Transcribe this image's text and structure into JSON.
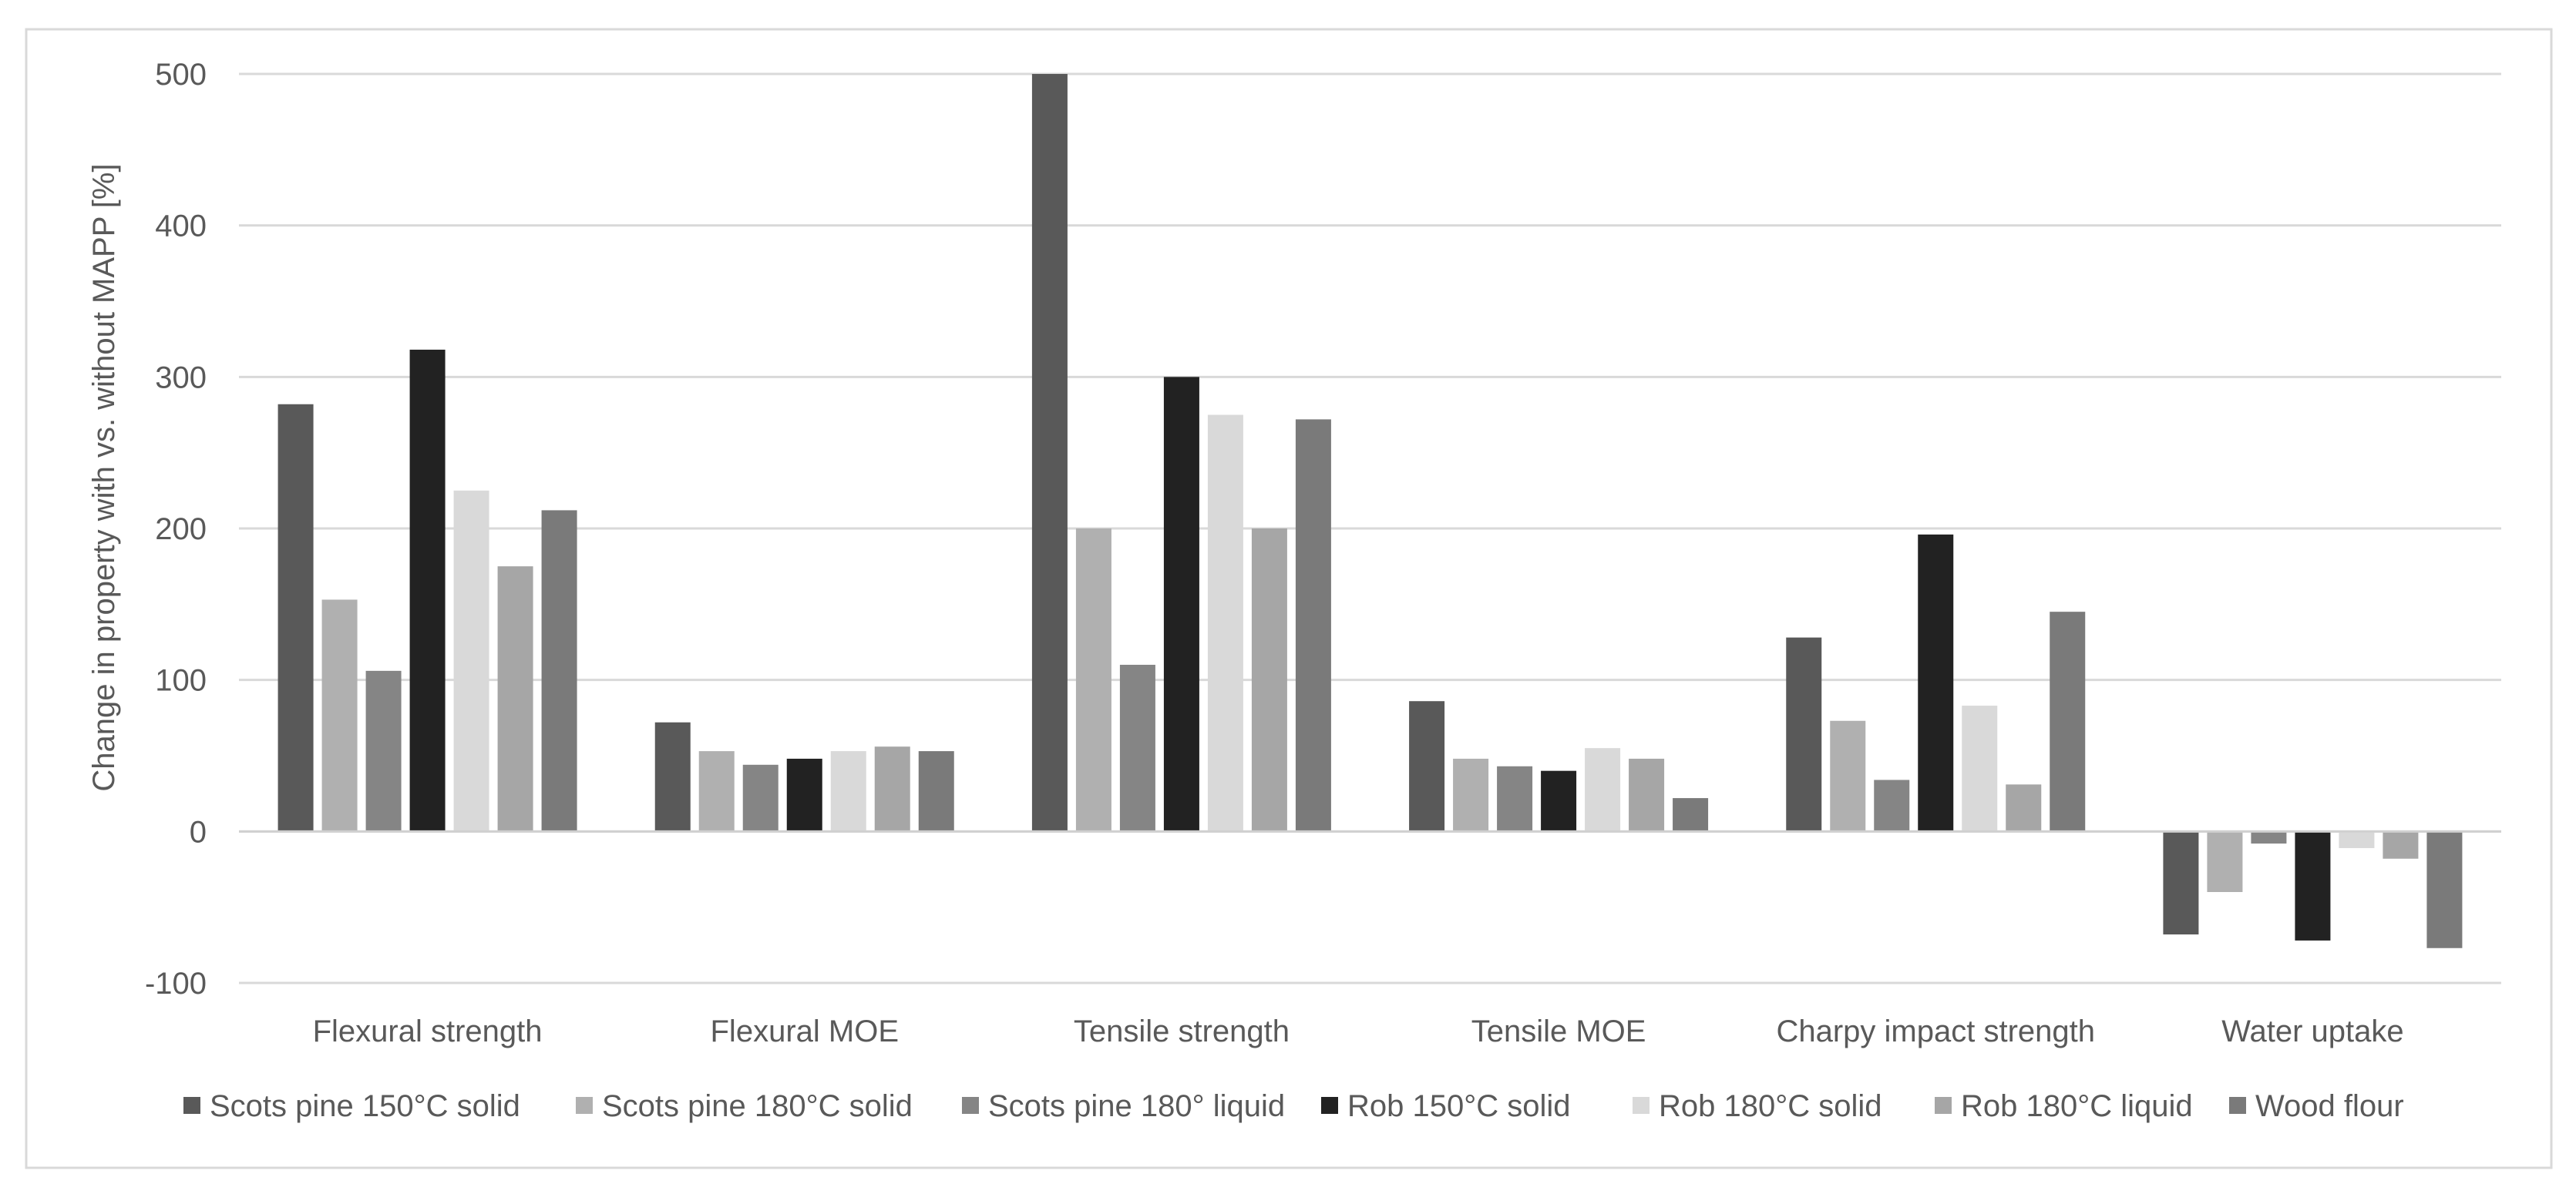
{
  "chart_data": {
    "type": "bar",
    "title": "",
    "xlabel": "",
    "ylabel": "Change in property with vs. without MAPP [%]",
    "ylim": [
      -100,
      500
    ],
    "yticks": [
      -100,
      0,
      100,
      200,
      300,
      400,
      500
    ],
    "ytick_labels": [
      "-100",
      "0",
      "100",
      "200",
      "300",
      "400",
      "500"
    ],
    "grid": true,
    "legend_position": "bottom",
    "categories": [
      "Flexural strength",
      "Flexural MOE",
      "Tensile strength",
      "Tensile MOE",
      "Charpy impact strength",
      "Water uptake"
    ],
    "series": [
      {
        "name": "Scots pine 150°C solid",
        "color": "#595959",
        "values": [
          282,
          72,
          500,
          86,
          128,
          -68
        ]
      },
      {
        "name": "Scots pine 180°C solid",
        "color": "#b0b0b0",
        "values": [
          153,
          53,
          200,
          48,
          73,
          -40
        ]
      },
      {
        "name": "Scots pine 180° liquid",
        "color": "#858585",
        "values": [
          106,
          44,
          110,
          43,
          34,
          -8
        ]
      },
      {
        "name": "Rob 150°C solid",
        "color": "#222222",
        "values": [
          318,
          48,
          300,
          40,
          196,
          -72
        ]
      },
      {
        "name": "Rob 180°C solid",
        "color": "#d9d9d9",
        "values": [
          225,
          53,
          275,
          55,
          83,
          -11
        ]
      },
      {
        "name": "Rob 180°C liquid",
        "color": "#a6a6a6",
        "values": [
          175,
          56,
          200,
          48,
          31,
          -18
        ]
      },
      {
        "name": "Wood flour",
        "color": "#7a7a7a",
        "values": [
          212,
          53,
          272,
          22,
          145,
          -77
        ]
      }
    ]
  }
}
